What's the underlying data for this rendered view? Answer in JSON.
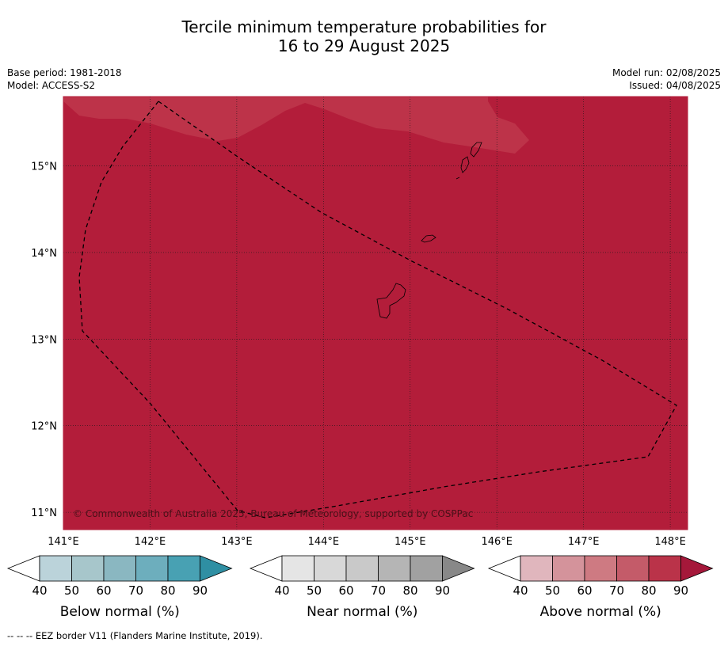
{
  "title_line1": "Tercile minimum temperature probabilities for",
  "title_line2": "16 to 29 August 2025",
  "base_period": "Base period: 1981-2018",
  "model": "Model: ACCESS-S2",
  "model_run": "Model run: 02/08/2025",
  "issued": "Issued: 04/08/2025",
  "map": {
    "lon_range": [
      141.0,
      148.2
    ],
    "lat_range": [
      10.8,
      15.8
    ],
    "lon_ticks": [
      "141°E",
      "142°E",
      "143°E",
      "144°E",
      "145°E",
      "146°E",
      "147°E",
      "148°E"
    ],
    "lat_ticks": [
      "15°N",
      "14°N",
      "13°N",
      "12°N",
      "11°N"
    ],
    "base_fill_color": "#b31d3a",
    "lighter_region_color": "#bd3349",
    "coastline_color": "#000000",
    "eez_line_style": "dashed",
    "gridlines": "dotted",
    "copyright": "© Commonwealth of Australia 2025, Bureau of Meteorology, supported by COSPPac"
  },
  "legends": [
    {
      "label": "Below normal (%)",
      "ticks": [
        "40",
        "50",
        "60",
        "70",
        "80",
        "90"
      ],
      "colors": [
        "#ffffff",
        "#bbd3da",
        "#a7c6cb",
        "#8ab7c1",
        "#6daebd",
        "#48a1b3",
        "#2f8fa3"
      ]
    },
    {
      "label": "Near normal (%)",
      "ticks": [
        "40",
        "50",
        "60",
        "70",
        "80",
        "90"
      ],
      "colors": [
        "#ffffff",
        "#e5e5e5",
        "#d8d8d8",
        "#c9c9c9",
        "#b5b5b5",
        "#a1a1a1",
        "#888888"
      ]
    },
    {
      "label": "Above normal (%)",
      "ticks": [
        "40",
        "50",
        "60",
        "70",
        "80",
        "90"
      ],
      "colors": [
        "#ffffff",
        "#e0b6bd",
        "#d4939b",
        "#ce7a82",
        "#c45b69",
        "#ba3349",
        "#a5183a"
      ]
    }
  ],
  "footnote": "--  --  -- EEZ border V11 (Flanders Marine Institute, 2019)."
}
